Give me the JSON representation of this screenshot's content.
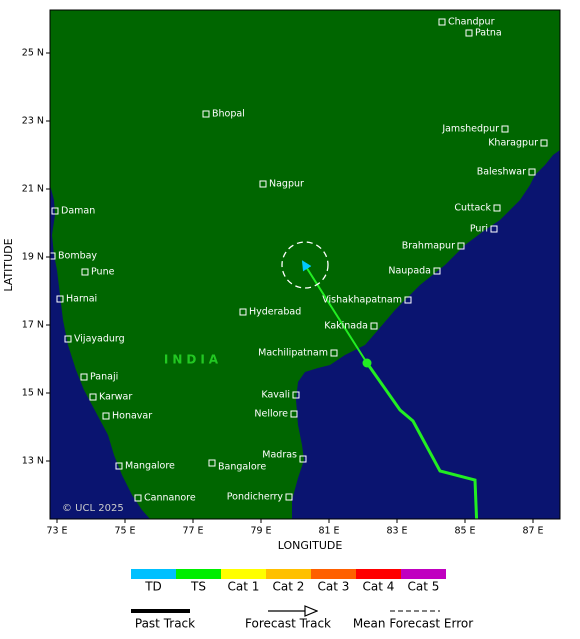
{
  "map": {
    "x_axis": {
      "title": "LONGITUDE",
      "ticks": [
        "73 E",
        "75 E",
        "77 E",
        "79 E",
        "81 E",
        "83 E",
        "85 E",
        "87 E"
      ]
    },
    "y_axis": {
      "title": "LATITUDE",
      "ticks": [
        "25 N",
        "23 N",
        "21 N",
        "19 N",
        "17 N",
        "15 N",
        "13 N"
      ]
    },
    "region_label": "INDIA",
    "credit": "© UCL 2025",
    "cities": [
      "Chandpur",
      "Patna",
      "Bhopal",
      "Jamshedpur",
      "Kharagpur",
      "Nagpur",
      "Baleshwar",
      "Daman",
      "Cuttack",
      "Puri",
      "Brahmapur",
      "Bombay",
      "Pune",
      "Naupada",
      "Harnai",
      "Vishakhapatnam",
      "Hyderabad",
      "Kakinada",
      "Vijayadurg",
      "Machilipatnam",
      "Panaji",
      "Kavali",
      "Karwar",
      "Nellore",
      "Honavar",
      "Madras",
      "Mangalore",
      "Bangalore",
      "Cannanore",
      "Pondicherry"
    ]
  },
  "legend": {
    "intensity": [
      "TD",
      "TS",
      "Cat 1",
      "Cat 2",
      "Cat 3",
      "Cat 4",
      "Cat 5"
    ],
    "tracks": [
      "Past Track",
      "Forecast Track",
      "Mean Forecast Error"
    ]
  }
}
